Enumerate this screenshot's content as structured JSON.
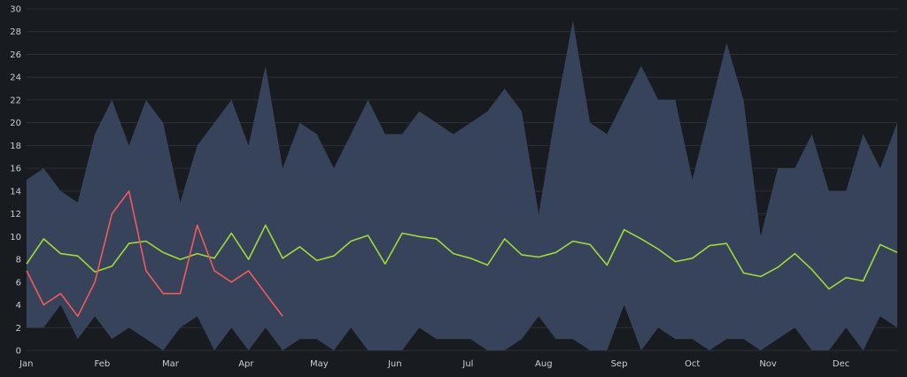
{
  "chart_data": {
    "type": "area",
    "title": "",
    "xlabel": "",
    "ylabel": "",
    "ylim": [
      0,
      30
    ],
    "yticks": [
      "0",
      "2",
      "4",
      "6",
      "8",
      "10",
      "12",
      "14",
      "16",
      "18",
      "20",
      "22",
      "24",
      "26",
      "28",
      "30"
    ],
    "xticks": [
      {
        "label": "Jan",
        "week": 0
      },
      {
        "label": "Feb",
        "week": 4.43
      },
      {
        "label": "Mar",
        "week": 8.43
      },
      {
        "label": "Apr",
        "week": 12.86
      },
      {
        "label": "May",
        "week": 17.14
      },
      {
        "label": "Jun",
        "week": 21.57
      },
      {
        "label": "Jul",
        "week": 25.86
      },
      {
        "label": "Aug",
        "week": 30.29
      },
      {
        "label": "Sep",
        "week": 34.71
      },
      {
        "label": "Oct",
        "week": 39.0
      },
      {
        "label": "Nov",
        "week": 43.43
      },
      {
        "label": "Dec",
        "week": 47.71
      }
    ],
    "grid": true,
    "colors": {
      "background": "#181b1f",
      "band": "#37435a",
      "grid": "#2c3036",
      "green": "#a0d93a",
      "red": "#f05a5a",
      "tick": "#c7d0d9"
    },
    "band": {
      "upper": [
        15,
        16,
        14,
        13,
        19,
        22,
        18,
        22,
        20,
        13,
        18,
        20,
        22,
        18,
        25,
        16,
        20,
        19,
        16,
        19,
        22,
        19,
        19,
        21,
        20,
        19,
        20,
        21,
        23,
        21,
        12,
        21,
        29,
        20,
        19,
        22,
        25,
        22,
        22,
        15,
        21,
        27,
        22,
        10,
        16,
        16,
        19,
        14,
        14,
        19,
        16,
        20
      ],
      "lower": [
        2,
        2,
        4,
        1,
        3,
        1,
        2,
        1,
        0,
        2,
        3,
        0,
        2,
        0,
        2,
        0,
        1,
        1,
        0,
        2,
        0,
        0,
        0,
        2,
        1,
        1,
        1,
        0,
        0,
        1,
        3,
        1,
        1,
        0,
        0,
        4,
        0,
        2,
        1,
        1,
        0,
        1,
        1,
        0,
        1,
        2,
        0,
        0,
        2,
        0,
        3,
        2
      ]
    },
    "series": [
      {
        "values": [
          7.6,
          9.8,
          8.5,
          8.3,
          6.9,
          7.4,
          9.4,
          9.6,
          8.6,
          8.0,
          8.5,
          8.1,
          10.3,
          8.0,
          11.0,
          8.1,
          9.1,
          7.9,
          8.3,
          9.6,
          10.1,
          7.6,
          10.3,
          10.0,
          9.8,
          8.5,
          8.1,
          7.5,
          9.8,
          8.4,
          8.2,
          8.6,
          9.6,
          9.3,
          7.5,
          10.6,
          9.8,
          8.9,
          7.8,
          8.1,
          9.2,
          9.4,
          6.8,
          6.5,
          7.3,
          8.5,
          7.1,
          5.4,
          6.4,
          6.1,
          9.3,
          8.6
        ]
      },
      {
        "values": [
          7,
          4,
          5,
          3,
          6,
          12,
          14,
          7,
          5,
          5,
          11,
          7,
          6,
          7,
          5,
          3
        ]
      }
    ]
  }
}
